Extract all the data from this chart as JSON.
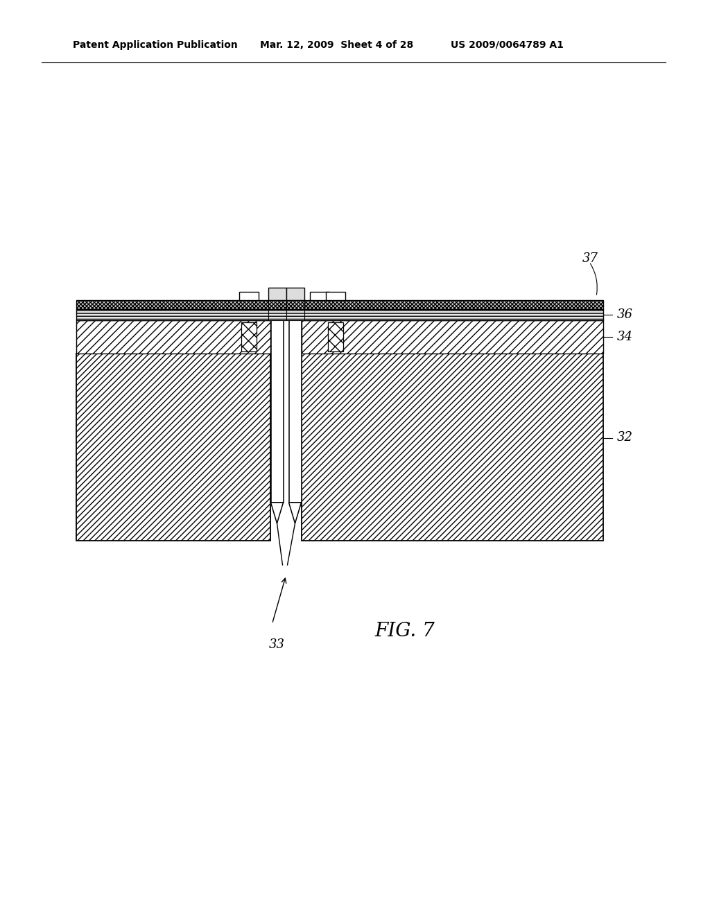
{
  "bg_color": "#ffffff",
  "line_color": "#000000",
  "header_left": "Patent Application Publication",
  "header_mid": "Mar. 12, 2009  Sheet 4 of 28",
  "header_right": "US 2009/0064789 A1",
  "fig_label": "FIG. 7",
  "label_32": "32",
  "label_33": "33",
  "label_34": "34",
  "label_36": "36",
  "label_37": "37"
}
